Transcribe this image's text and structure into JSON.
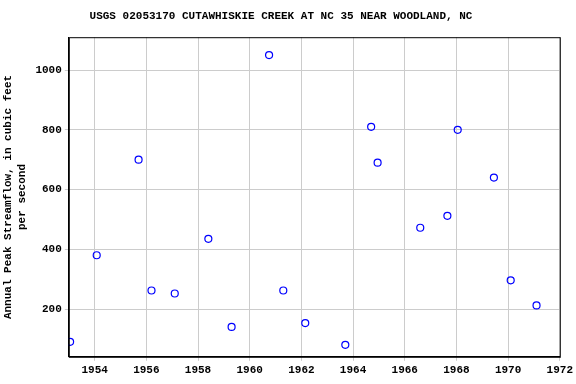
{
  "chart_data": {
    "type": "scatter",
    "title": "USGS 02053170 CUTAWHISKIE CREEK AT NC 35 NEAR WOODLAND, NC",
    "y_label": [
      "Annual Peak Streamflow, in cubic feet",
      "per second"
    ],
    "x": [
      1953.05,
      1954.08,
      1955.7,
      1956.2,
      1957.1,
      1958.4,
      1959.3,
      1960.75,
      1961.3,
      1962.15,
      1963.7,
      1964.7,
      1964.95,
      1966.6,
      1967.65,
      1968.05,
      1969.45,
      1970.1,
      1971.1
    ],
    "values": [
      90,
      380,
      700,
      262,
      252,
      435,
      140,
      1050,
      262,
      153,
      80,
      810,
      690,
      472,
      512,
      800,
      640,
      296,
      212
    ],
    "color": "#0000ff",
    "marker": "open_circle",
    "xlim": [
      1953,
      1972
    ],
    "xticks": [
      1954,
      1956,
      1958,
      1960,
      1962,
      1964,
      1966,
      1968,
      1970,
      1972
    ],
    "ylim": [
      40,
      1110
    ],
    "yticks": [
      200,
      400,
      600,
      800,
      1000
    ],
    "grid": true
  }
}
